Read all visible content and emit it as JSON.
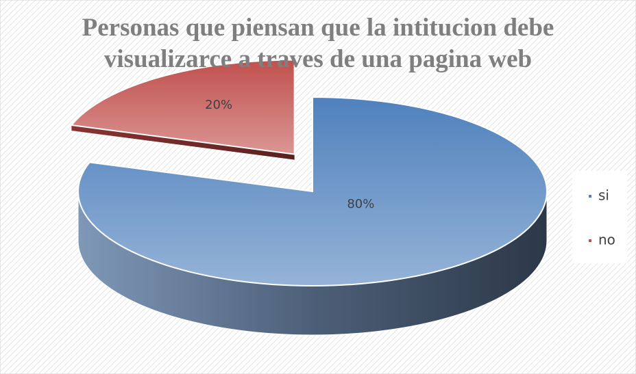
{
  "chart_data": {
    "type": "pie",
    "title": "Personas que piensan que la intitucion debe visualizarce a traves de una pagina web",
    "categories": [
      "si",
      "no"
    ],
    "values": [
      80,
      20
    ],
    "value_labels": [
      "80%",
      "20%"
    ],
    "colors": [
      "#4f81bd",
      "#c0504d"
    ],
    "legend": "right"
  }
}
